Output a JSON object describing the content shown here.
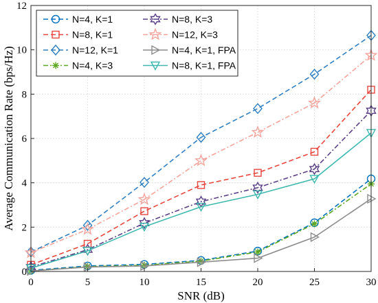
{
  "chart_data": {
    "type": "line",
    "title": "",
    "xlabel": "SNR (dB)",
    "ylabel": "Average Communication Rate (bps/Hz)",
    "xlim": [
      0,
      30
    ],
    "ylim": [
      0,
      12
    ],
    "xticks": [
      "0",
      "5",
      "10",
      "15",
      "20",
      "25",
      "30"
    ],
    "yticks": [
      "0",
      "2",
      "4",
      "6",
      "8",
      "10",
      "12"
    ],
    "grid": true,
    "legend_position": "top-left",
    "x": [
      0,
      5,
      10,
      15,
      20,
      25,
      30
    ],
    "series": [
      {
        "name": "N=4, K=1",
        "color": "#0072BD",
        "dash": "dash",
        "marker": "circle",
        "values": [
          0.05,
          0.25,
          0.32,
          0.5,
          0.92,
          2.2,
          4.18
        ]
      },
      {
        "name": "N=8, K=1",
        "color": "#E8453C",
        "dash": "dash",
        "marker": "square",
        "values": [
          0.3,
          1.25,
          2.72,
          3.9,
          4.45,
          5.4,
          8.2
        ]
      },
      {
        "name": "N=12, K=1",
        "color": "#2F7FC1",
        "dash": "dash",
        "marker": "diamond",
        "values": [
          0.88,
          2.08,
          4.02,
          6.05,
          7.35,
          8.9,
          10.65
        ]
      },
      {
        "name": "N=4, K=3",
        "color": "#5EA820",
        "dash": "dashdot",
        "marker": "asterisk",
        "values": [
          0.02,
          0.22,
          0.28,
          0.47,
          0.88,
          2.15,
          3.95
        ]
      },
      {
        "name": "N=8, K=3",
        "color": "#5A3F86",
        "dash": "dashdot",
        "marker": "hexagram",
        "values": [
          0.2,
          0.98,
          2.18,
          3.15,
          3.78,
          4.62,
          7.25
        ]
      },
      {
        "name": "N=12, K=3",
        "color": "#F4A39A",
        "dash": "dashdot",
        "marker": "pentagram",
        "values": [
          0.85,
          1.9,
          3.25,
          5.0,
          6.28,
          7.6,
          9.75
        ]
      },
      {
        "name": "N=4, K=1, FPA",
        "color": "#8C8C8C",
        "dash": "solid",
        "marker": "triangle-right",
        "values": [
          0.02,
          0.2,
          0.25,
          0.42,
          0.6,
          1.55,
          3.28
        ]
      },
      {
        "name": "N=8, K=1, FPA",
        "color": "#3DB8AF",
        "dash": "solid",
        "marker": "triangle-down",
        "values": [
          0.15,
          0.93,
          2.02,
          2.92,
          3.48,
          4.18,
          6.25
        ]
      }
    ]
  }
}
